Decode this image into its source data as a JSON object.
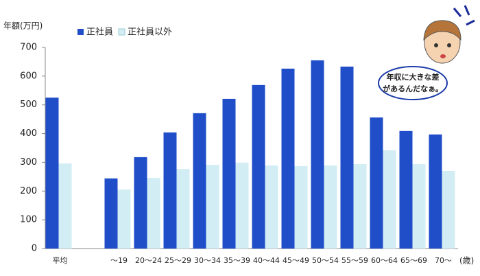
{
  "chart_data": {
    "type": "bar",
    "y_label": "年額(万円)",
    "x_unit": "(歳)",
    "categories": [
      "平均",
      null,
      "～19",
      "20～24",
      "25～29",
      "30～34",
      "35～39",
      "40～44",
      "45～49",
      "50～54",
      "55～59",
      "60～64",
      "65～69",
      "70～"
    ],
    "series": [
      {
        "name": "正社員",
        "color": "#1f4ec8",
        "values": [
          525,
          null,
          244,
          318,
          404,
          471,
          521,
          569,
          626,
          655,
          633,
          456,
          409,
          397
        ]
      },
      {
        "name": "正社員以外",
        "color": "#d2edf4",
        "values": [
          296,
          null,
          205,
          246,
          277,
          291,
          299,
          289,
          287,
          289,
          294,
          342,
          294,
          270
        ]
      }
    ],
    "ylim": [
      0,
      700
    ],
    "yticks": [
      0,
      100,
      200,
      300,
      400,
      500,
      600,
      700
    ],
    "annotation": [
      "年収に大きな差",
      "があるんだなぁ。"
    ]
  }
}
